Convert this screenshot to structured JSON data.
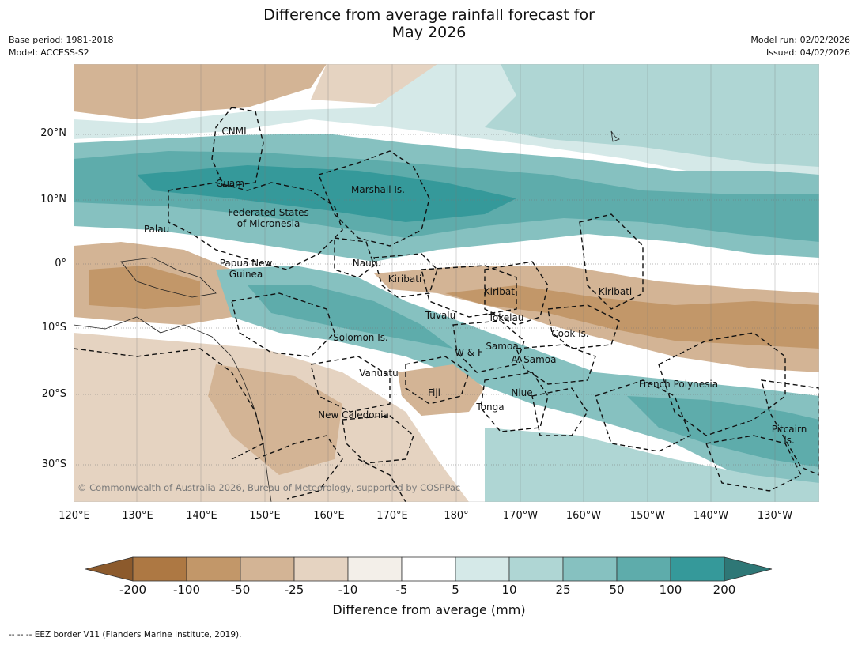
{
  "title": {
    "line1": "Difference from average rainfall forecast for",
    "line2": "May 2026"
  },
  "meta_left": {
    "base_period": "Base period: 1981-2018",
    "model": "Model: ACCESS-S2"
  },
  "meta_right": {
    "model_run": "Model run: 02/02/2026",
    "issued": "Issued: 04/02/2026"
  },
  "lat_labels": [
    "20°N",
    "10°N",
    "0°",
    "10°S",
    "20°S",
    "30°S"
  ],
  "lon_labels": [
    "120°E",
    "130°E",
    "140°E",
    "150°E",
    "160°E",
    "170°E",
    "180°",
    "170°W",
    "160°W",
    "150°W",
    "140°W",
    "130°W"
  ],
  "regions": {
    "cnmi": "CNMI",
    "guam": "Guam",
    "marshall": "Marshall Is.",
    "fsm1": "Federated States",
    "fsm2": "of Micronesia",
    "palau": "Palau",
    "png1": "Papua New",
    "png2": "Guinea",
    "nauru": "Nauru",
    "kiribati_w": "Kiribati",
    "kiribati_c": "Kiribati",
    "kiribati_e": "Kiribati",
    "tuvalu": "Tuvalu",
    "tokelau": "Tokelau",
    "cook": "Cook Is.",
    "solomon": "Solomon Is.",
    "samoa": "Samoa",
    "wf": "W & F",
    "asamoa": "A. Samoa",
    "vanuatu": "Vanuatu",
    "fiji": "Fiji",
    "niue": "Niue",
    "tonga": "Tonga",
    "frpoly": "French Polynesia",
    "newcal": "New Caledonia",
    "pitcairn1": "Pitcairn",
    "pitcairn2": "Is."
  },
  "copyright": "© Commonwealth of Australia 2026, Bureau of Meteorology, supported by COSPPac",
  "colorbar": {
    "ticks": [
      "-200",
      "-100",
      "-50",
      "-25",
      "-10",
      "-5",
      "5",
      "10",
      "25",
      "50",
      "100",
      "200"
    ],
    "colors": [
      "#8c5a2c",
      "#ad7843",
      "#c29769",
      "#d3b495",
      "#e5d3c1",
      "#f3efe9",
      "#ffffff",
      "#d5e9e8",
      "#afd6d4",
      "#86c1c0",
      "#5eacab",
      "#35999a",
      "#2e7776"
    ],
    "title": "Difference from average (mm)"
  },
  "footnote": "--  --  -- EEZ border V11 (Flanders Marine Institute, 2019)."
}
